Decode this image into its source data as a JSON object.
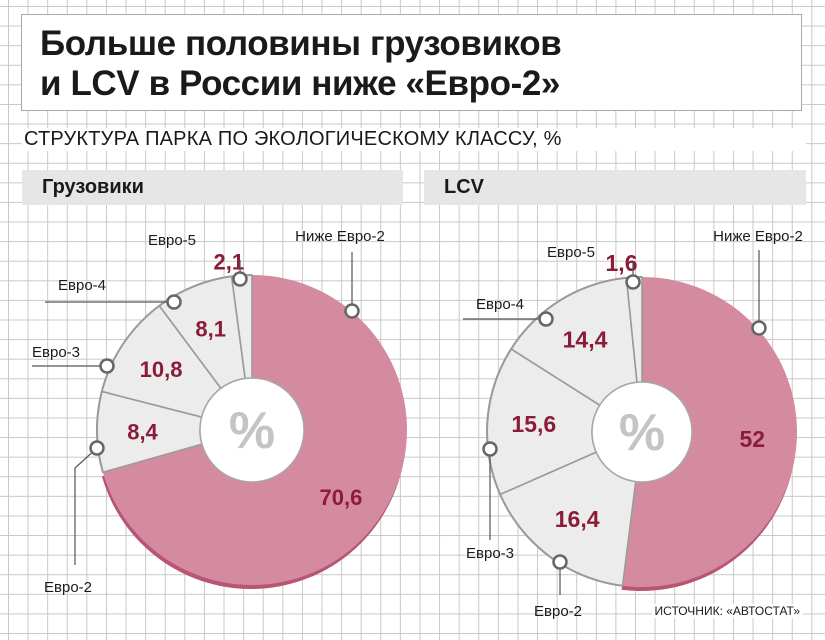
{
  "title": "Больше половины грузовиков\nи LCV в России ниже «Евро-2»",
  "subtitle": "СТРУКТУРА ПАРКА ПО ЭКОЛОГИЧЕСКОМУ КЛАССУ, %",
  "source": "ИСТОЧНИК: «АВТОСТАТ»",
  "center_symbol": "%",
  "colors": {
    "highlight": "#d48ba0",
    "highlight_edge": "#b85575",
    "other": "#ececec",
    "value_text": "#8c1b3a"
  },
  "chart_data": [
    {
      "type": "pie",
      "title": "Грузовики",
      "categories": [
        "Ниже Евро-2",
        "Евро-2",
        "Евро-3",
        "Евро-4",
        "Евро-5"
      ],
      "values": [
        70.6,
        8.4,
        10.8,
        8.1,
        2.1
      ],
      "labels": [
        "70,6",
        "8,4",
        "10,8",
        "8,1",
        "2,1"
      ],
      "highlight": "Ниже Евро-2"
    },
    {
      "type": "pie",
      "title": "LCV",
      "categories": [
        "Ниже Евро-2",
        "Евро-2",
        "Евро-3",
        "Евро-4",
        "Евро-5"
      ],
      "values": [
        52,
        16.4,
        15.6,
        14.4,
        1.6
      ],
      "labels": [
        "52",
        "16,4",
        "15,6",
        "14,4",
        "1,6"
      ],
      "highlight": "Ниже Евро-2"
    }
  ]
}
